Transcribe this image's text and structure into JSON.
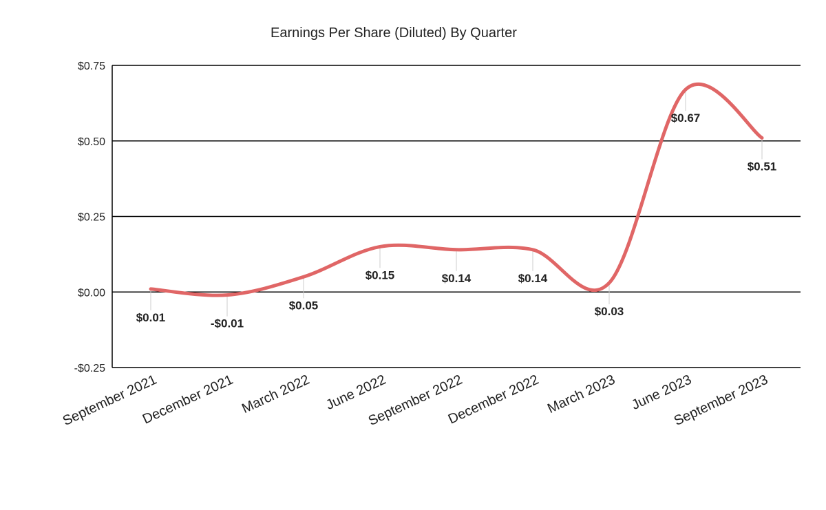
{
  "chart_data": {
    "type": "line",
    "title": "Earnings Per Share (Diluted) By Quarter",
    "categories": [
      "September 2021",
      "December 2021",
      "March 2022",
      "June 2022",
      "September 2022",
      "December 2022",
      "March 2023",
      "June 2023",
      "September 2023"
    ],
    "series": [
      {
        "values": [
          0.01,
          -0.01,
          0.05,
          0.15,
          0.14,
          0.14,
          0.03,
          0.67,
          0.51
        ],
        "labels": [
          "$0.01",
          "-$0.01",
          "$0.05",
          "$0.15",
          "$0.14",
          "$0.14",
          "$0.03",
          "$0.67",
          "$0.51"
        ],
        "color": "#e06666"
      }
    ],
    "ylim": [
      -0.25,
      0.75
    ],
    "yticks": [
      -0.25,
      0,
      0.25,
      0.5,
      0.75
    ],
    "ytick_labels": [
      "-$0.25",
      "$0.00",
      "$0.25",
      "$0.50",
      "$0.75"
    ],
    "grid": true,
    "smooth": true,
    "xlabel": "",
    "ylabel": ""
  }
}
